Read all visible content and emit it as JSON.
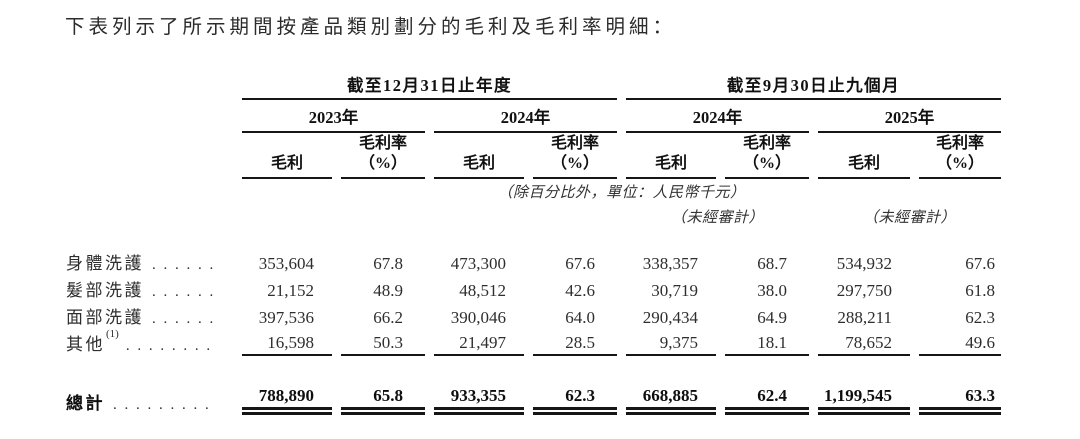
{
  "intro": "下表列示了所示期間按產品類別劃分的毛利及毛利率明細：",
  "table": {
    "group_headers": [
      "截至12月31日止年度",
      "截至9月30日止九個月"
    ],
    "year_headers": [
      "2023年",
      "2024年",
      "2024年",
      "2025年"
    ],
    "col_headers": {
      "gross_profit": "毛利",
      "margin_line1": "毛利率",
      "margin_line2": "（%）"
    },
    "unit_note": "（除百分比外，單位：人民幣千元）",
    "unaudited_note": "（未經審計）",
    "rows": [
      {
        "label": "身體洗護",
        "leader": ". . . . . .",
        "values": [
          "353,604",
          "67.8",
          "473,300",
          "67.6",
          "338,357",
          "68.7",
          "534,932",
          "67.6"
        ]
      },
      {
        "label": "髮部洗護",
        "leader": ". . . . . .",
        "values": [
          "21,152",
          "48.9",
          "48,512",
          "42.6",
          "30,719",
          "38.0",
          "297,750",
          "61.8"
        ]
      },
      {
        "label": "面部洗護",
        "leader": ". . . . . .",
        "values": [
          "397,536",
          "66.2",
          "390,046",
          "64.0",
          "290,434",
          "64.9",
          "288,211",
          "62.3"
        ]
      },
      {
        "label": "其他",
        "sup": "(1)",
        "leader": ". . . . . . . .",
        "values": [
          "16,598",
          "50.3",
          "21,497",
          "28.5",
          "9,375",
          "18.1",
          "78,652",
          "49.6"
        ]
      }
    ],
    "total": {
      "label": "總計",
      "leader": ". . . . . . . . .",
      "values": [
        "788,890",
        "65.8",
        "933,355",
        "62.3",
        "668,885",
        "62.4",
        "1,199,545",
        "63.3"
      ]
    }
  }
}
